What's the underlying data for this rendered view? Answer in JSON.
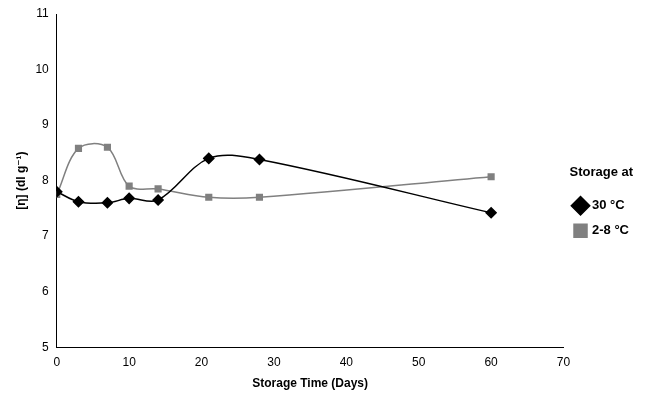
{
  "chart_data": {
    "type": "line",
    "x_label": "Storage Time (Days)",
    "y_label": "[η] (dl g⁻¹)",
    "legend_title": "Storage at",
    "legend": "right",
    "grid": false,
    "x": [
      0,
      3,
      7,
      10,
      14,
      21,
      28,
      60
    ],
    "series": [
      {
        "name": "30 °C",
        "color": "#000000",
        "marker": "diamond",
        "line_style": "smooth",
        "values": [
          7.8,
          7.62,
          7.6,
          7.68,
          7.65,
          8.4,
          8.38,
          7.42
        ]
      },
      {
        "name": "2-8 °C",
        "color": "#808080",
        "marker": "square",
        "line_style": "smooth",
        "values": [
          7.75,
          8.58,
          8.6,
          7.9,
          7.85,
          7.7,
          7.7,
          8.07
        ]
      }
    ],
    "xlim": [
      0,
      70
    ],
    "xticks": [
      0,
      10,
      20,
      30,
      40,
      50,
      60,
      70
    ],
    "ylim": [
      5,
      11
    ],
    "yticks": [
      5,
      6,
      7,
      8,
      9,
      10,
      11
    ]
  }
}
